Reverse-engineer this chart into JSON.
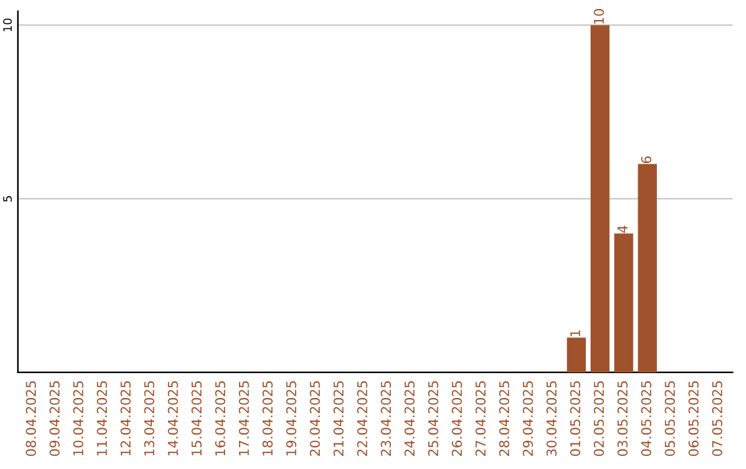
{
  "chart_data": {
    "type": "bar",
    "categories": [
      "08.04.2025",
      "09.04.2025",
      "10.04.2025",
      "11.04.2025",
      "12.04.2025",
      "13.04.2025",
      "14.04.2025",
      "15.04.2025",
      "16.04.2025",
      "17.04.2025",
      "18.04.2025",
      "19.04.2025",
      "20.04.2025",
      "21.04.2025",
      "22.04.2025",
      "23.04.2025",
      "24.04.2025",
      "25.04.2025",
      "26.04.2025",
      "27.04.2025",
      "28.04.2025",
      "29.04.2025",
      "30.04.2025",
      "01.05.2025",
      "02.05.2025",
      "03.05.2025",
      "04.05.2025",
      "05.05.2025",
      "06.05.2025",
      "07.05.2025"
    ],
    "values": [
      0,
      0,
      0,
      0,
      0,
      0,
      0,
      0,
      0,
      0,
      0,
      0,
      0,
      0,
      0,
      0,
      0,
      0,
      0,
      0,
      0,
      0,
      0,
      1,
      10,
      4,
      6,
      0,
      0,
      0
    ],
    "value_labels": [
      null,
      null,
      null,
      null,
      null,
      null,
      null,
      null,
      null,
      null,
      null,
      null,
      null,
      null,
      null,
      null,
      null,
      null,
      null,
      null,
      null,
      null,
      null,
      "1",
      "10",
      "4",
      "6",
      null,
      null,
      null
    ],
    "color": "#a0522d",
    "ylim": [
      0,
      10.4
    ],
    "yticks": [
      5,
      10
    ],
    "grid": "y"
  }
}
